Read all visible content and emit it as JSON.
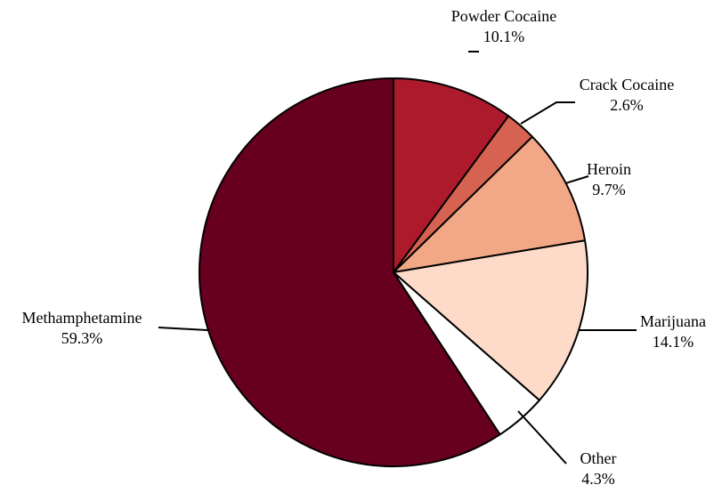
{
  "chart_data": {
    "type": "pie",
    "start": "12 o'clock",
    "direction": "clockwise",
    "slices": [
      {
        "label": "Powder Cocaine",
        "value": 10.1,
        "value_label": "10.1%",
        "color": "#ad1a2c"
      },
      {
        "label": "Crack Cocaine",
        "value": 2.6,
        "value_label": "2.6%",
        "color": "#d66252"
      },
      {
        "label": "Heroin",
        "value": 9.7,
        "value_label": "9.7%",
        "color": "#f2a886"
      },
      {
        "label": "Marijuana",
        "value": 14.1,
        "value_label": "14.1%",
        "color": "#fddbc8"
      },
      {
        "label": "Other",
        "value": 4.3,
        "value_label": "4.3%",
        "color": "#ffffff"
      },
      {
        "label": "Methamphetamine",
        "value": 59.3,
        "value_label": "59.3%",
        "color": "#67001f"
      }
    ]
  }
}
